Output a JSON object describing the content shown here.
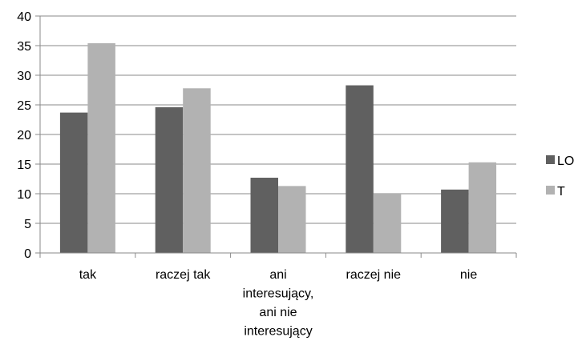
{
  "chart_data": {
    "type": "bar",
    "categories": [
      [
        "tak"
      ],
      [
        "raczej tak"
      ],
      [
        "ani",
        "interesujący,",
        "ani nie",
        "interesujący"
      ],
      [
        "raczej nie"
      ],
      [
        "nie"
      ]
    ],
    "series": [
      {
        "name": "LO",
        "color": "#606060",
        "values": [
          23.7,
          24.6,
          12.7,
          28.3,
          10.7
        ]
      },
      {
        "name": "T",
        "color": "#b2b2b2",
        "values": [
          35.4,
          27.8,
          11.3,
          10.1,
          15.3
        ]
      }
    ],
    "ylim": [
      0,
      40
    ],
    "yticks": [
      0,
      5,
      10,
      15,
      20,
      25,
      30,
      35,
      40
    ],
    "grid": true,
    "legend": "right",
    "title": "",
    "xlabel": "",
    "ylabel": ""
  }
}
